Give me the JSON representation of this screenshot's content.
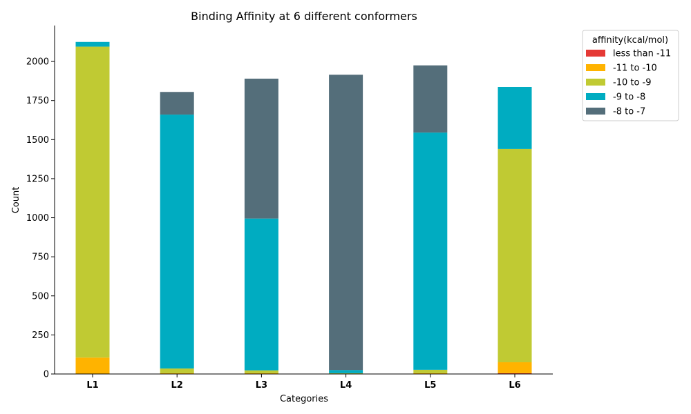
{
  "chart_data": {
    "type": "bar",
    "stacked": true,
    "title": "Binding Affinity at 6 different conformers",
    "xlabel": "Categories",
    "ylabel": "Count",
    "categories": [
      "L1",
      "L2",
      "L3",
      "L4",
      "L5",
      "L6"
    ],
    "ylim": [
      0,
      2230
    ],
    "yticks": [
      0,
      250,
      500,
      750,
      1000,
      1250,
      1500,
      1750,
      2000
    ],
    "legend": {
      "title": "affinity(kcal/mol)",
      "placement": "outside-top-right"
    },
    "series": [
      {
        "name": "less than -11",
        "color": "#e53935",
        "values": [
          0,
          0,
          0,
          0,
          0,
          5
        ]
      },
      {
        "name": "-11 to -10",
        "color": "#ffb300",
        "values": [
          105,
          5,
          5,
          0,
          5,
          70
        ]
      },
      {
        "name": "-10 to -9",
        "color": "#c0ca33",
        "values": [
          1990,
          30,
          18,
          5,
          22,
          1365
        ]
      },
      {
        "name": "-9 to -8",
        "color": "#00acc1",
        "values": [
          30,
          1625,
          972,
          20,
          1518,
          397
        ]
      },
      {
        "name": "-8 to -7",
        "color": "#546e7a",
        "values": [
          0,
          145,
          895,
          1890,
          430,
          0
        ]
      }
    ]
  }
}
